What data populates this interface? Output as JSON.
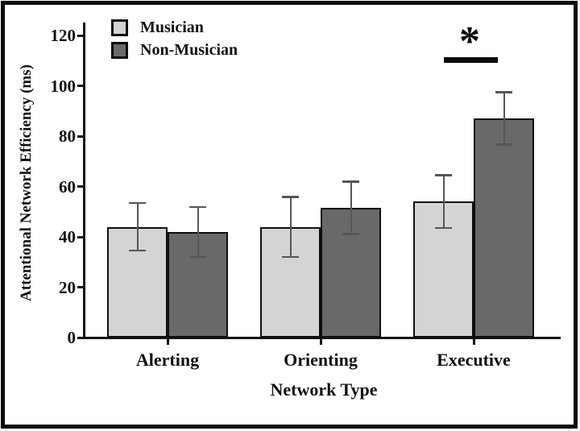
{
  "chart_data": {
    "type": "bar",
    "title": "",
    "xlabel": "Network Type",
    "ylabel": "Attentional Network Efficiency (ms)",
    "categories": [
      "Alerting",
      "Orienting",
      "Executive"
    ],
    "series": [
      {
        "name": "Musician",
        "color": "#d4d4d4",
        "values": [
          44,
          44,
          54
        ],
        "errors": [
          9.5,
          12,
          10.5
        ]
      },
      {
        "name": "Non-Musician",
        "color": "#696969",
        "values": [
          42,
          51.5,
          87
        ],
        "errors": [
          10,
          10.5,
          10.5
        ]
      }
    ],
    "ylim": [
      0,
      125
    ],
    "yticks": [
      0,
      20,
      40,
      60,
      80,
      100,
      120
    ],
    "grid": false,
    "legend_position": "top-left",
    "error_bar_color": "#565656",
    "axis_color": "#141414",
    "significance": {
      "symbol": "*",
      "category": "Executive",
      "between": [
        "Musician",
        "Non-Musician"
      ]
    }
  }
}
